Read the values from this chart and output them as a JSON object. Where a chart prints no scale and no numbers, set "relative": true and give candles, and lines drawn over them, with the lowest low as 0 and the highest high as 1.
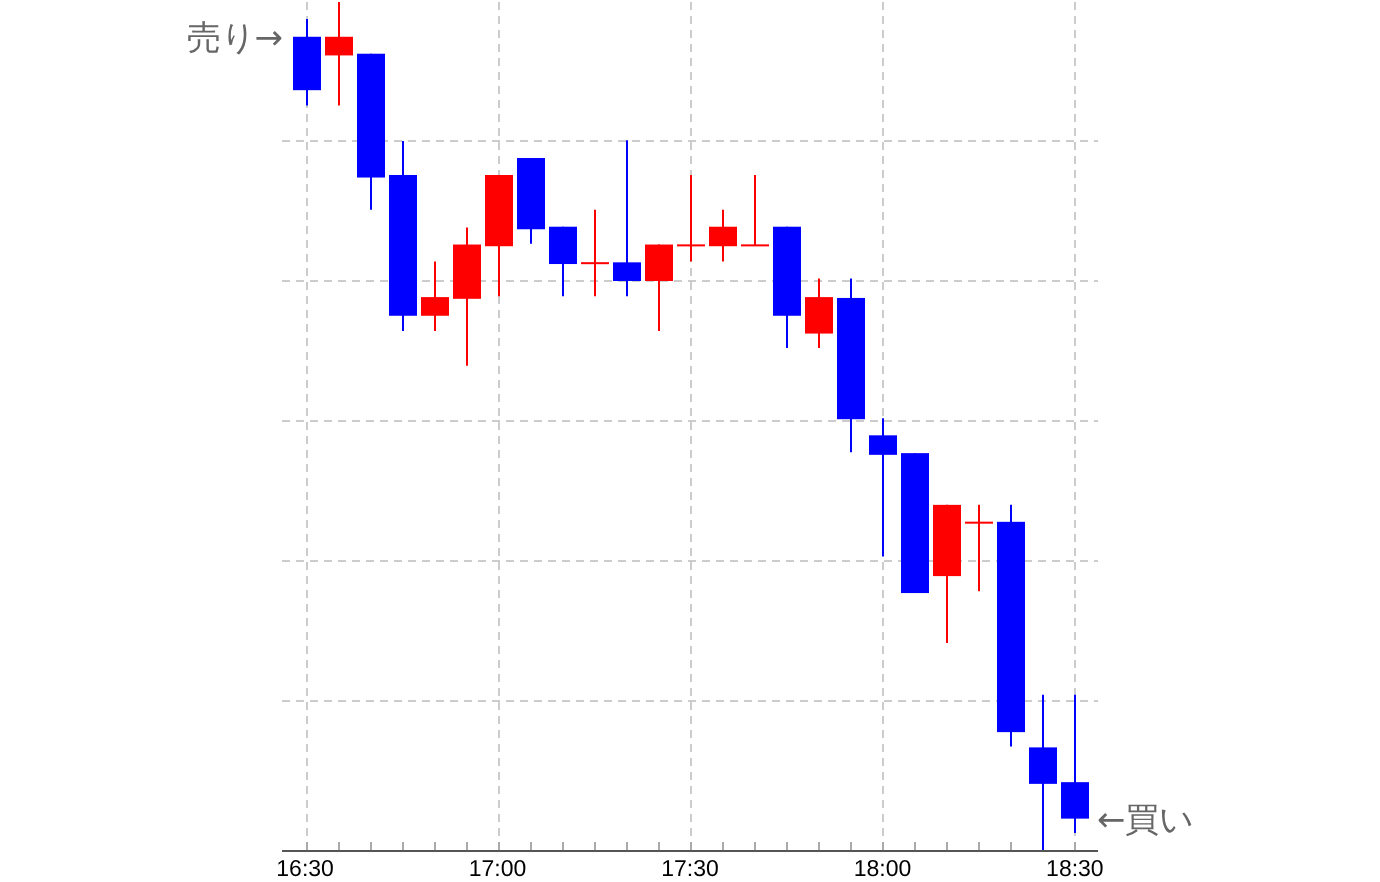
{
  "chart_data": {
    "type": "candlestick",
    "relative": true,
    "x": [
      16.5,
      16.583,
      16.667,
      16.75,
      16.833,
      16.917,
      17,
      17.083,
      17.167,
      17.25,
      17.333,
      17.417,
      17.5,
      17.583,
      17.667,
      17.75,
      17.833,
      17.917,
      18,
      18.083,
      18.167,
      18.25,
      18.333,
      18.417,
      18.5
    ],
    "ohlc": [
      [
        0.959,
        0.98,
        0.878,
        0.896
      ],
      [
        0.937,
        1.0,
        0.878,
        0.959
      ],
      [
        0.939,
        0.939,
        0.755,
        0.793
      ],
      [
        0.796,
        0.836,
        0.612,
        0.63
      ],
      [
        0.63,
        0.694,
        0.612,
        0.652
      ],
      [
        0.65,
        0.734,
        0.571,
        0.714
      ],
      [
        0.712,
        0.796,
        0.653,
        0.796
      ],
      [
        0.816,
        0.816,
        0.715,
        0.732
      ],
      [
        0.735,
        0.735,
        0.653,
        0.691
      ],
      [
        0.692,
        0.755,
        0.653,
        0.692
      ],
      [
        0.693,
        0.837,
        0.653,
        0.671
      ],
      [
        0.671,
        0.714,
        0.612,
        0.714
      ],
      [
        0.713,
        0.796,
        0.694,
        0.713
      ],
      [
        0.712,
        0.755,
        0.694,
        0.735
      ],
      [
        0.713,
        0.796,
        0.713,
        0.713
      ],
      [
        0.735,
        0.735,
        0.592,
        0.63
      ],
      [
        0.609,
        0.674,
        0.592,
        0.652
      ],
      [
        0.651,
        0.674,
        0.469,
        0.508
      ],
      [
        0.489,
        0.509,
        0.346,
        0.466
      ],
      [
        0.468,
        0.468,
        0.303,
        0.303
      ],
      [
        0.323,
        0.407,
        0.244,
        0.407
      ],
      [
        0.386,
        0.407,
        0.305,
        0.386
      ],
      [
        0.387,
        0.407,
        0.122,
        0.139
      ],
      [
        0.121,
        0.183,
        0.0,
        0.078
      ],
      [
        0.08,
        0.183,
        0.02,
        0.037
      ]
    ],
    "colors": [
      "#0000ff",
      "#ff0000",
      "#0000ff",
      "#0000ff",
      "#ff0000",
      "#ff0000",
      "#ff0000",
      "#0000ff",
      "#0000ff",
      "#ff0000",
      "#0000ff",
      "#ff0000",
      "#ff0000",
      "#ff0000",
      "#ff0000",
      "#0000ff",
      "#ff0000",
      "#0000ff",
      "#0000ff",
      "#0000ff",
      "#ff0000",
      "#ff0000",
      "#0000ff",
      "#0000ff",
      "#0000ff"
    ],
    "xlim": [
      16.44,
      18.56
    ],
    "xticks": [
      {
        "value": 16.5,
        "label": "16:30"
      },
      {
        "value": 16.583,
        "label": null
      },
      {
        "value": 16.667,
        "label": null
      },
      {
        "value": 16.75,
        "label": null
      },
      {
        "value": 16.833,
        "label": null
      },
      {
        "value": 16.917,
        "label": null
      },
      {
        "value": 17,
        "label": "17:00"
      },
      {
        "value": 17.083,
        "label": null
      },
      {
        "value": 17.167,
        "label": null
      },
      {
        "value": 17.25,
        "label": null
      },
      {
        "value": 17.333,
        "label": null
      },
      {
        "value": 17.417,
        "label": null
      },
      {
        "value": 17.5,
        "label": "17:30"
      },
      {
        "value": 17.583,
        "label": null
      },
      {
        "value": 17.667,
        "label": null
      },
      {
        "value": 17.75,
        "label": null
      },
      {
        "value": 17.833,
        "label": null
      },
      {
        "value": 17.917,
        "label": null
      },
      {
        "value": 18,
        "label": "18:00"
      },
      {
        "value": 18.083,
        "label": null
      },
      {
        "value": 18.167,
        "label": null
      },
      {
        "value": 18.25,
        "label": null
      },
      {
        "value": 18.333,
        "label": null
      },
      {
        "value": 18.417,
        "label": null
      },
      {
        "value": 18.5,
        "label": "18:30"
      }
    ],
    "grid": true,
    "annotations": [
      "売り→",
      "←買い"
    ]
  }
}
